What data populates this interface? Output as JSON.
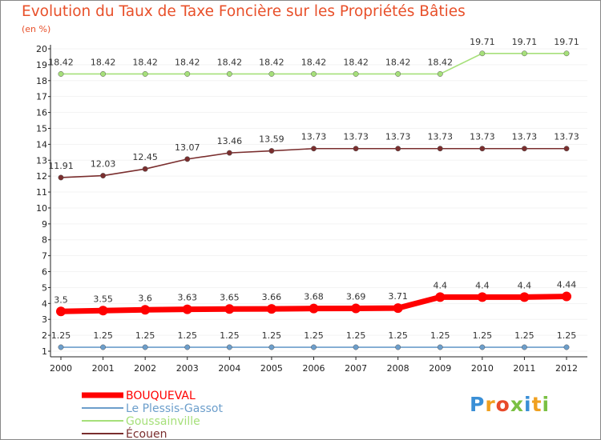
{
  "chart_data": {
    "type": "line",
    "title": "Evolution du Taux de Taxe Foncière sur les Propriétés Bâties",
    "subtitle": "(en %)",
    "xlabel": "",
    "ylabel": "",
    "ylim": [
      1,
      20
    ],
    "yticks": [
      1,
      2,
      3,
      4,
      5,
      6,
      7,
      8,
      9,
      10,
      11,
      12,
      13,
      14,
      15,
      16,
      17,
      18,
      19,
      20
    ],
    "categories": [
      "2000",
      "2001",
      "2002",
      "2003",
      "2004",
      "2005",
      "2006",
      "2007",
      "2008",
      "2009",
      "2010",
      "2011",
      "2012"
    ],
    "series": [
      {
        "name": "BOUQUEVAL",
        "color": "#ff0000",
        "values": [
          3.5,
          3.55,
          3.6,
          3.63,
          3.65,
          3.66,
          3.68,
          3.69,
          3.71,
          4.4,
          4.4,
          4.4,
          4.44
        ],
        "labels": [
          "3.5",
          "3.55",
          "3.6",
          "3.63",
          "3.65",
          "3.66",
          "3.68",
          "3.69",
          "3.71",
          "4.4",
          "4.4",
          "4.4",
          "4.44"
        ]
      },
      {
        "name": "Le Plessis-Gassot",
        "color": "#6c9ecb",
        "values": [
          1.25,
          1.25,
          1.25,
          1.25,
          1.25,
          1.25,
          1.25,
          1.25,
          1.25,
          1.25,
          1.25,
          1.25,
          1.25
        ],
        "labels": [
          "1.25",
          "1.25",
          "1.25",
          "1.25",
          "1.25",
          "1.25",
          "1.25",
          "1.25",
          "1.25",
          "1.25",
          "1.25",
          "1.25",
          "1.25"
        ]
      },
      {
        "name": "Goussainville",
        "color": "#a6e07a",
        "values": [
          18.42,
          18.42,
          18.42,
          18.42,
          18.42,
          18.42,
          18.42,
          18.42,
          18.42,
          18.42,
          19.71,
          19.71,
          19.71
        ],
        "labels": [
          "18.42",
          "18.42",
          "18.42",
          "18.42",
          "18.42",
          "18.42",
          "18.42",
          "18.42",
          "18.42",
          "18.42",
          "19.71",
          "19.71",
          "19.71"
        ]
      },
      {
        "name": "Écouen",
        "color": "#7a2e2e",
        "values": [
          11.91,
          12.03,
          12.45,
          13.07,
          13.46,
          13.59,
          13.73,
          13.73,
          13.73,
          13.73,
          13.73,
          13.73,
          13.73
        ],
        "labels": [
          "11.91",
          "12.03",
          "12.45",
          "13.07",
          "13.46",
          "13.59",
          "13.73",
          "13.73",
          "13.73",
          "13.73",
          "13.73",
          "13.73",
          "13.73"
        ]
      }
    ],
    "legend_position": "bottom-left"
  },
  "branding": {
    "logo_text": "Proxiti",
    "logo_letters": [
      "P",
      "r",
      "o",
      "x",
      "i",
      "t",
      "i"
    ],
    "logo_colors": [
      "#3a8fd6",
      "#f0a020",
      "#e84a2a",
      "#7ac043",
      "#3a8fd6",
      "#f0a020",
      "#7ac043"
    ]
  }
}
